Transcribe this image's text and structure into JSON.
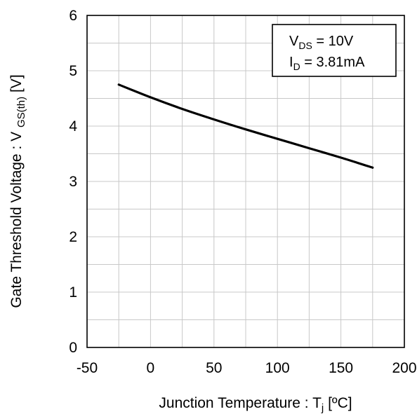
{
  "chart_data": {
    "type": "line",
    "title": "",
    "xlabel": {
      "main": "Junction Temperature : T",
      "sub": "j",
      "tail": " [ºC]"
    },
    "ylabel": {
      "main": "Gate Threshold Voltage : V ",
      "sub": "GS(th)",
      "tail": " [V]"
    },
    "xlim": [
      -50,
      200
    ],
    "ylim": [
      0,
      6
    ],
    "x_tick_labels": [
      "-50",
      "0",
      "50",
      "100",
      "150",
      "200"
    ],
    "y_tick_labels": [
      "0",
      "1",
      "2",
      "3",
      "4",
      "5",
      "6"
    ],
    "x_ticks": [
      -50,
      0,
      50,
      100,
      150,
      200
    ],
    "y_ticks": [
      0,
      1,
      2,
      3,
      4,
      5,
      6
    ],
    "x_grid": [
      -25,
      0,
      25,
      50,
      75,
      100,
      125,
      150,
      175
    ],
    "y_grid": [
      0.5,
      1,
      1.5,
      2,
      2.5,
      3,
      3.5,
      4,
      4.5,
      5,
      5.5
    ],
    "grid": true,
    "series": [
      {
        "x": [
          -25,
          0,
          25,
          50,
          75,
          100,
          125,
          150,
          175
        ],
        "y": [
          4.75,
          4.52,
          4.31,
          4.12,
          3.94,
          3.77,
          3.6,
          3.43,
          3.25
        ]
      }
    ],
    "legend": {
      "position": "top-right",
      "line1": {
        "main": "V",
        "sub": "DS",
        "tail": " = 10V"
      },
      "line2": {
        "main": "I",
        "sub": "D",
        "tail": " = 3.81mA"
      }
    }
  }
}
